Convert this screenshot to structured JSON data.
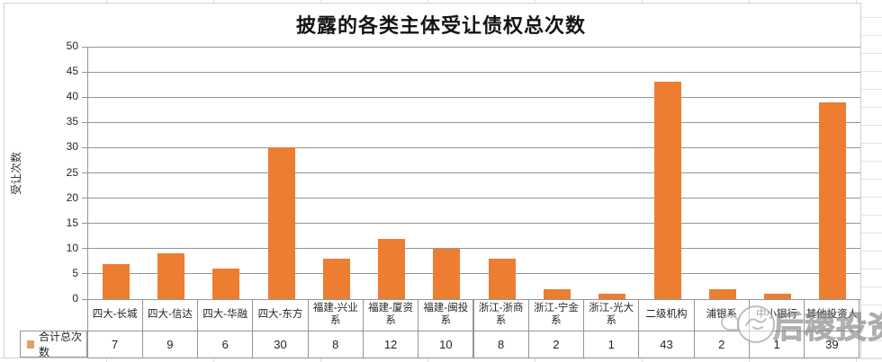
{
  "chart_data": {
    "type": "bar",
    "title": "披露的各类主体受让债权总次数",
    "ylabel": "受让次数",
    "xlabel": "",
    "categories": [
      "四大-长城",
      "四大-信达",
      "四大-华融",
      "四大-东方",
      "福建-兴业系",
      "福建-厦资系",
      "福建-闽投系",
      "浙江-浙商系",
      "浙江-宁金系",
      "浙江-光大系",
      "二级机构",
      "浦银系",
      "中小银行",
      "其他投资人"
    ],
    "series": [
      {
        "name": "合计总次数",
        "values": [
          7,
          9,
          6,
          30,
          8,
          12,
          10,
          8,
          2,
          1,
          43,
          2,
          1,
          39
        ]
      }
    ],
    "ylim": [
      0,
      50
    ],
    "ytick_step": 5,
    "grid": true,
    "legend_position": "bottom-table-left"
  },
  "style": {
    "bar_color": "#ED7D31",
    "legend_key_color": "#DFA164",
    "grid_color": "#959595",
    "border_color": "#959595",
    "axis_text_color": "#262626"
  },
  "watermark": {
    "text": "后稷投资"
  }
}
